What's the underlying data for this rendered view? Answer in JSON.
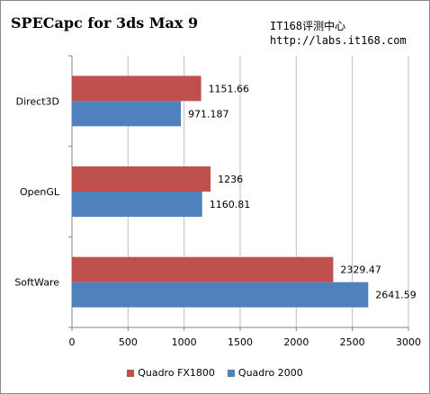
{
  "title": "SPECapc for 3ds Max 9",
  "watermark": {
    "line1": "IT168评测中心",
    "line2": "http://labs.it168.com"
  },
  "chart_data": {
    "type": "bar",
    "orientation": "horizontal",
    "categories": [
      "Direct3D",
      "OpenGL",
      "SoftWare"
    ],
    "series": [
      {
        "name": "Quadro FX1800",
        "color": "#c0504d",
        "values": [
          1151.66,
          1236,
          2329.47
        ]
      },
      {
        "name": "Quadro 2000",
        "color": "#4f81bd",
        "values": [
          971.187,
          1160.81,
          2641.59
        ]
      }
    ],
    "value_labels": [
      [
        "1151.66",
        "1236",
        "2329.47"
      ],
      [
        "971.187",
        "1160.81",
        "2641.59"
      ]
    ],
    "xlim": [
      0,
      3000
    ],
    "xticks": [
      "0",
      "500",
      "1000",
      "1500",
      "2000",
      "2500",
      "3000"
    ],
    "grid": true,
    "legend_position": "bottom"
  }
}
